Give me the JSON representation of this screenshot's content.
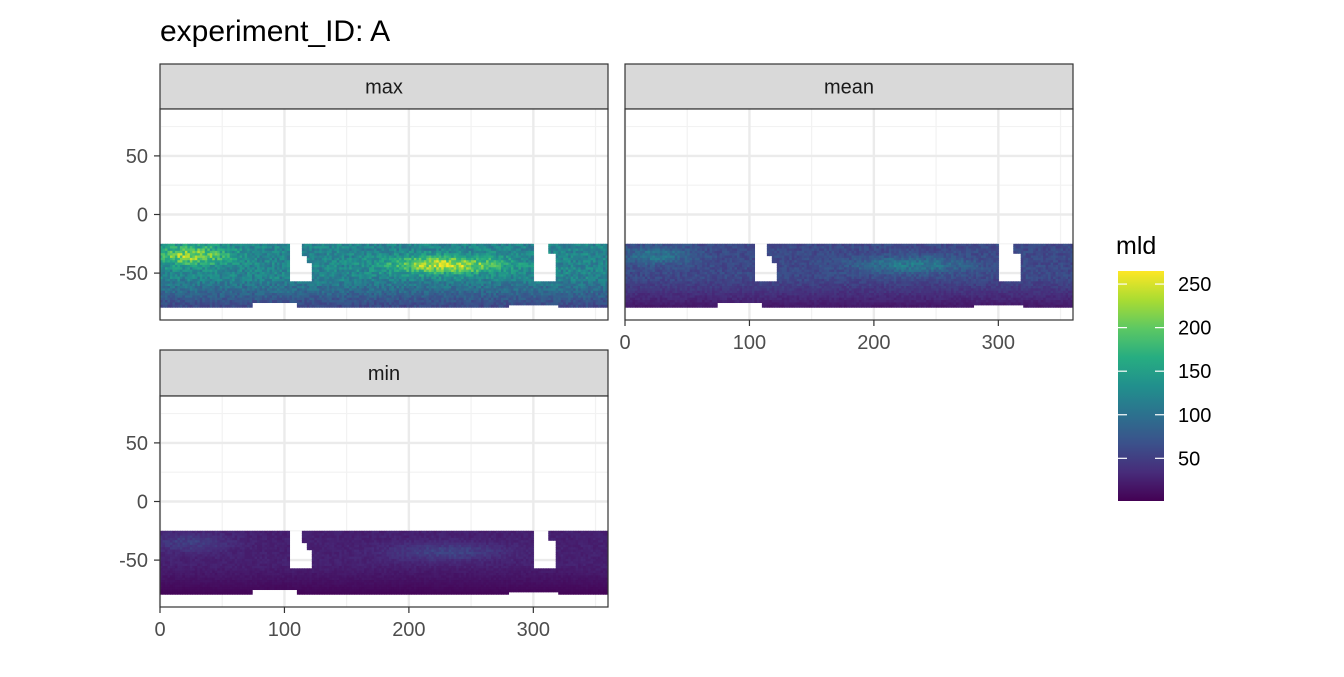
{
  "chart_data": {
    "type": "heatmap",
    "title": "experiment_ID: A",
    "xlabel": "",
    "ylabel": "",
    "xlim": [
      0,
      360
    ],
    "ylim": [
      -90,
      90
    ],
    "x_ticks": [
      0,
      100,
      200,
      300
    ],
    "y_ticks": [
      50,
      0,
      -50
    ],
    "x_tick_labels": [
      "0",
      "100",
      "200",
      "300"
    ],
    "y_tick_labels": [
      "50",
      "0",
      "-50"
    ],
    "grid": true,
    "legend": {
      "title": "mld",
      "position": "right",
      "range": [
        1,
        265
      ],
      "ticks": [
        250,
        200,
        150,
        100,
        50
      ],
      "tick_labels": [
        "250",
        "200",
        "150",
        "100",
        "50"
      ],
      "colormap": "viridis",
      "colors": [
        "#440154",
        "#472c7a",
        "#3b518b",
        "#2c718e",
        "#21908d",
        "#27ad81",
        "#5cc863",
        "#aadc32",
        "#fde725"
      ]
    },
    "data_lat_range": [
      -78,
      -25
    ],
    "panels": [
      {
        "label": "max",
        "mld_typical": 120,
        "mld_peak": 240,
        "mld_south": 60
      },
      {
        "label": "mean",
        "mld_typical": 60,
        "mld_peak": 110,
        "mld_south": 20
      },
      {
        "label": "min",
        "mld_typical": 25,
        "mld_peak": 55,
        "mld_south": 5
      }
    ]
  }
}
